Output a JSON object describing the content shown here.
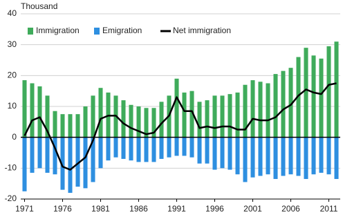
{
  "chart_data": {
    "type": "bar-line",
    "y_unit_label": "Thousand",
    "x": [
      1971,
      1972,
      1973,
      1974,
      1975,
      1976,
      1977,
      1978,
      1979,
      1980,
      1981,
      1982,
      1983,
      1984,
      1985,
      1986,
      1987,
      1988,
      1989,
      1990,
      1991,
      1992,
      1993,
      1994,
      1995,
      1996,
      1997,
      1998,
      1999,
      2000,
      2001,
      2002,
      2003,
      2004,
      2005,
      2006,
      2007,
      2008,
      2009,
      2010,
      2011,
      2012
    ],
    "xlim": [
      1970.5,
      2012.5
    ],
    "xticks": [
      1971,
      1976,
      1981,
      1986,
      1991,
      1996,
      2001,
      2006,
      2011
    ],
    "ylim": [
      -20,
      40
    ],
    "yticks": [
      -20,
      -10,
      0,
      10,
      20,
      30,
      40
    ],
    "grid": true,
    "legend": "top-left",
    "series": [
      {
        "name": "Immigration",
        "color": "#3fab5b",
        "kind": "bar",
        "values": [
          18.5,
          17.5,
          16.5,
          13.5,
          8.5,
          7.5,
          7.5,
          7.5,
          10,
          13.5,
          16,
          14.5,
          13.5,
          12,
          10.5,
          10,
          9.5,
          9.5,
          11.5,
          13.5,
          19,
          14.5,
          15,
          11.5,
          12,
          13.5,
          13.5,
          14,
          14.5,
          17,
          18.5,
          18,
          17.5,
          20.5,
          21.5,
          22.5,
          26,
          29,
          26.5,
          25.5,
          29.5,
          31
        ]
      },
      {
        "name": "Emigration",
        "color": "#2e8fe0",
        "kind": "bar",
        "values": [
          -17.5,
          -11.5,
          -10,
          -11.5,
          -12,
          -17,
          -18,
          -16,
          -16.5,
          -14.5,
          -10,
          -7.5,
          -6.5,
          -7,
          -7.5,
          -8,
          -8,
          -8,
          -7,
          -6.5,
          -6,
          -6,
          -6.5,
          -8.5,
          -8.5,
          -10.5,
          -10,
          -10.5,
          -12,
          -14.5,
          -13,
          -12.5,
          -12,
          -13.5,
          -12.5,
          -12,
          -12.5,
          -13.5,
          -12,
          -11.5,
          -12,
          -13.5
        ]
      },
      {
        "name": "Net immigration",
        "color": "#000000",
        "kind": "line",
        "values": [
          0.5,
          5.5,
          6.5,
          2,
          -3.5,
          -9.5,
          -10.5,
          -8.5,
          -6.5,
          -1,
          6,
          7,
          7,
          4.5,
          3,
          2,
          1,
          1.5,
          4.5,
          7,
          13,
          8.5,
          8.5,
          3,
          3.5,
          3,
          3.5,
          3.5,
          2.5,
          2.5,
          6,
          5.5,
          5.5,
          6.5,
          9,
          10.5,
          13.5,
          15.5,
          14.5,
          14,
          17,
          17.5
        ]
      }
    ]
  }
}
